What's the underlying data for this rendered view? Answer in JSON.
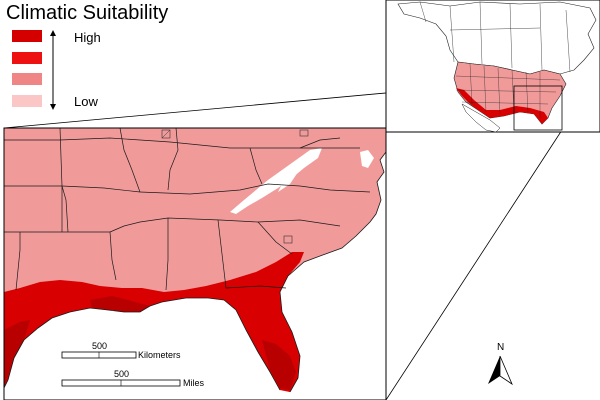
{
  "legend": {
    "title": "Climatic Suitability",
    "high_label": "High",
    "low_label": "Low",
    "classes": [
      {
        "level": "highest",
        "color": "#d40000"
      },
      {
        "level": "high",
        "color": "#ee1111"
      },
      {
        "level": "medium",
        "color": "#f08585"
      },
      {
        "level": "low",
        "color": "#fbc6c6"
      }
    ]
  },
  "colors": {
    "land_base": "#f19a9a",
    "coast_high": "#d80000",
    "coast_highest": "#b80000",
    "mountain_low": "#ffffff",
    "outline": "#1a1a1a"
  },
  "scale_bar": {
    "kilometers_value": "500",
    "kilometers_unit": "Kilometers",
    "miles_value": "500",
    "miles_unit": "Miles"
  },
  "north_arrow": {
    "label": "N"
  },
  "inset": {
    "region": "North America",
    "highlight": "Southeastern United States"
  }
}
